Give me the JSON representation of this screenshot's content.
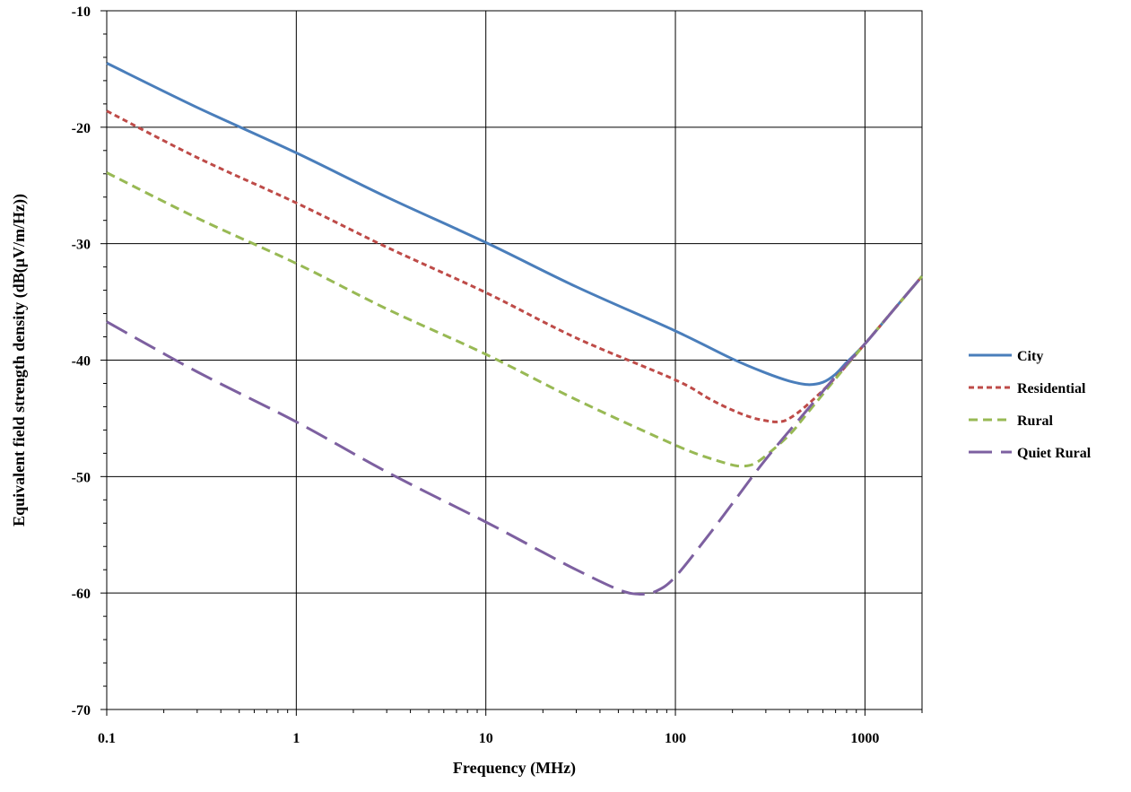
{
  "chart_data": {
    "type": "line",
    "xlabel": "Frequency (MHz)",
    "ylabel": "Equivalent field strength density (dB(μV/m/Hz))",
    "x_scale": "log",
    "xlim": [
      0.1,
      2000
    ],
    "ylim": [
      -70,
      -10
    ],
    "x_ticks": [
      0.1,
      1,
      10,
      100,
      1000
    ],
    "x_tick_labels": [
      "0.1",
      "1",
      "10",
      "100",
      "1000"
    ],
    "y_ticks": [
      -70,
      -60,
      -50,
      -40,
      -30,
      -20,
      -10
    ],
    "y_tick_labels": [
      "-70",
      "-60",
      "-50",
      "-40",
      "-30",
      "-20",
      "-10"
    ],
    "grid": true,
    "legend_position": "right",
    "series": [
      {
        "name": "City",
        "color": "#4a7ebb",
        "dash": "solid",
        "x": [
          0.1,
          0.3,
          1,
          3,
          10,
          30,
          100,
          200,
          300,
          400,
          500,
          600,
          700,
          800,
          1000,
          1500,
          2000
        ],
        "y": [
          -14.5,
          -18.3,
          -22.2,
          -26.0,
          -29.9,
          -33.7,
          -37.5,
          -39.9,
          -41.1,
          -41.8,
          -42.1,
          -41.9,
          -41.2,
          -40.2,
          -38.6,
          -35.2,
          -32.8
        ]
      },
      {
        "name": "Residential",
        "color": "#be4b48",
        "dash": "short-dash",
        "x": [
          0.1,
          0.3,
          1,
          3,
          10,
          30,
          100,
          150,
          200,
          250,
          300,
          350,
          400,
          500,
          700,
          1000,
          1500,
          2000
        ],
        "y": [
          -18.6,
          -22.6,
          -26.5,
          -30.3,
          -34.2,
          -38.1,
          -41.7,
          -43.3,
          -44.3,
          -44.9,
          -45.2,
          -45.3,
          -45.0,
          -43.8,
          -41.5,
          -38.6,
          -35.2,
          -32.8
        ]
      },
      {
        "name": "Rural",
        "color": "#98b954",
        "dash": "dash",
        "x": [
          0.1,
          0.3,
          1,
          3,
          10,
          30,
          100,
          150,
          200,
          230,
          260,
          300,
          400,
          500,
          700,
          1000,
          1500,
          2000
        ],
        "y": [
          -23.9,
          -27.8,
          -31.7,
          -35.6,
          -39.5,
          -43.4,
          -47.3,
          -48.4,
          -49.0,
          -49.1,
          -48.9,
          -48.2,
          -46.4,
          -44.5,
          -41.6,
          -38.6,
          -35.2,
          -32.8
        ]
      },
      {
        "name": "Quiet Rural",
        "color": "#7d60a0",
        "dash": "long-dash",
        "x": [
          0.1,
          0.3,
          1,
          3,
          10,
          20,
          30,
          50,
          65,
          80,
          100,
          150,
          200,
          300,
          500,
          700,
          1000,
          1500,
          2000
        ],
        "y": [
          -36.7,
          -41.0,
          -45.3,
          -49.6,
          -53.9,
          -56.5,
          -58.0,
          -59.7,
          -60.1,
          -59.8,
          -58.6,
          -55.0,
          -52.3,
          -48.5,
          -44.2,
          -41.4,
          -38.6,
          -35.2,
          -32.8
        ]
      }
    ]
  }
}
